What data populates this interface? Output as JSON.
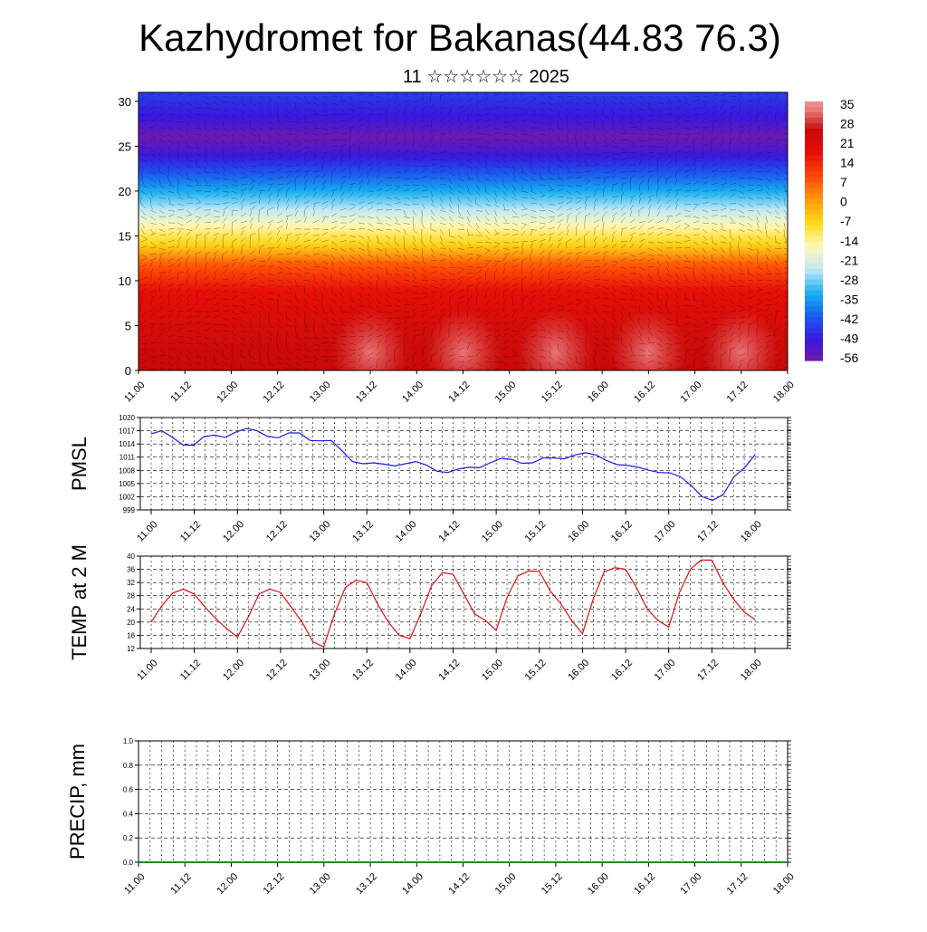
{
  "page": {
    "title": "Kazhydromet for Bakanas(44.83 76.3)",
    "subtitle": "11 ☆☆☆☆☆☆ 2025"
  },
  "time_labels": [
    "11.00",
    "11.12",
    "12.00",
    "12.12",
    "13.00",
    "13.12",
    "14.00",
    "14.12",
    "15.00",
    "15.12",
    "16.00",
    "16.12",
    "17.00",
    "17.12",
    "18.00"
  ],
  "colorbar": {
    "labels": [
      "35",
      "28",
      "21",
      "14",
      "7",
      "0",
      "-7",
      "-14",
      "-21",
      "-28",
      "-35",
      "-42",
      "-49",
      "-56"
    ]
  },
  "chart_data": [
    {
      "type": "heatmap",
      "id": "cross-section",
      "title": "",
      "xlabel": "",
      "ylabel": "",
      "x_ticks": [
        "11.00",
        "11.12",
        "12.00",
        "12.12",
        "13.00",
        "13.12",
        "14.00",
        "14.12",
        "15.00",
        "15.12",
        "16.00",
        "16.12",
        "17.00",
        "17.12",
        "18.00"
      ],
      "y_ticks": [
        0,
        5,
        10,
        15,
        20,
        25,
        30
      ],
      "ylim": [
        0,
        31
      ],
      "profile": {
        "levels": [
          0,
          3,
          6,
          9,
          12,
          14,
          16,
          18,
          20,
          22,
          24,
          26,
          28,
          31
        ],
        "temps": [
          28,
          26,
          23,
          19,
          8,
          -6,
          -15,
          -25,
          -34,
          -43,
          -52,
          -58,
          -52,
          -46
        ]
      },
      "hotspots": [
        {
          "time_h": 60,
          "level": 2,
          "temp": 33
        },
        {
          "time_h": 84,
          "level": 2,
          "temp": 35
        },
        {
          "time_h": 108,
          "level": 2,
          "temp": 35
        },
        {
          "time_h": 132,
          "level": 2,
          "temp": 35
        },
        {
          "time_h": 156,
          "level": 2,
          "temp": 36
        }
      ],
      "colorscale": [
        "#7a1aa6",
        "#3a17e0",
        "#1a5cf0",
        "#18b0f2",
        "#bfe8f6",
        "#fff8b8",
        "#ffd91a",
        "#ff9a0e",
        "#ff4a06",
        "#e80f08",
        "#c80a0a",
        "#f08a8a"
      ],
      "grid": false
    },
    {
      "type": "line",
      "id": "pmsl",
      "title": "",
      "ylabel": "PMSL",
      "x_ticks": [
        "11.00",
        "11.12",
        "12.00",
        "12.12",
        "13.00",
        "13.12",
        "14.00",
        "14.12",
        "15.00",
        "15.12",
        "16.00",
        "16.12",
        "17.00",
        "17.12",
        "18.00"
      ],
      "y_ticks": [
        999,
        1002,
        1005,
        1008,
        1011,
        1014,
        1017,
        1020
      ],
      "ylim": [
        999,
        1020
      ],
      "x_step_hours": 3,
      "series": [
        {
          "color": "#1a1ae6",
          "values": [
            1016.3,
            1017,
            1015.5,
            1013.8,
            1013.7,
            1015.7,
            1016,
            1015.5,
            1016.7,
            1017.5,
            1017,
            1015.7,
            1015.4,
            1016.5,
            1016.5,
            1014.8,
            1014.7,
            1014.8,
            1012.5,
            1010,
            1009.5,
            1009.7,
            1009.4,
            1009,
            1009.5,
            1010,
            1009.2,
            1007.8,
            1007.5,
            1008.3,
            1008.7,
            1008.6,
            1009.7,
            1010.7,
            1010.5,
            1009.6,
            1009.7,
            1010.8,
            1010.8,
            1010.6,
            1011.5,
            1012,
            1011.5,
            1010.2,
            1009.3,
            1009.1,
            1008.7,
            1008,
            1007.5,
            1007.4,
            1006.5,
            1004.5,
            1002,
            1001.2,
            1002.5,
            1006.5,
            1008.6,
            1011.5
          ]
        }
      ],
      "grid": true
    },
    {
      "type": "line",
      "id": "temp2m",
      "title": "",
      "ylabel": "TEMP at 2 M",
      "x_ticks": [
        "11.00",
        "11.12",
        "12.00",
        "12.12",
        "13.00",
        "13.12",
        "14.00",
        "14.12",
        "15.00",
        "15.12",
        "16.00",
        "16.12",
        "17.00",
        "17.12",
        "18.00"
      ],
      "y_ticks": [
        12,
        16,
        20,
        24,
        28,
        32,
        36,
        40
      ],
      "ylim": [
        12,
        40
      ],
      "x_step_hours": 3,
      "series": [
        {
          "color": "#e01010",
          "values": [
            20,
            25,
            28.8,
            30,
            28.5,
            24.5,
            21,
            18,
            15.5,
            21.5,
            28.5,
            30,
            29,
            24.5,
            20,
            14,
            12.5,
            22.5,
            30.5,
            32.7,
            32,
            25.5,
            20,
            16,
            15,
            22.5,
            31,
            35,
            34.5,
            28.5,
            22.5,
            20.5,
            17.5,
            27.5,
            34,
            35.5,
            35.4,
            29.5,
            25.5,
            20.5,
            16.5,
            27,
            35.2,
            36.5,
            36,
            30.5,
            24,
            20.5,
            18.5,
            29,
            36,
            38.8,
            38.8,
            32,
            27,
            23,
            20.8
          ]
        }
      ],
      "grid": true
    },
    {
      "type": "bar",
      "id": "precip",
      "title": "",
      "ylabel": "PRECIP, mm",
      "x_ticks": [
        "11.00",
        "11.12",
        "12.00",
        "12.12",
        "13.00",
        "13.12",
        "14.00",
        "14.12",
        "15.00",
        "15.12",
        "16.00",
        "16.12",
        "17.00",
        "17.12",
        "18.00"
      ],
      "y_ticks": [
        "0.0",
        "0.2",
        "0.4",
        "0.6",
        "0.8",
        "1.0"
      ],
      "ylim": [
        0,
        1
      ],
      "values": [],
      "grid": true
    }
  ]
}
